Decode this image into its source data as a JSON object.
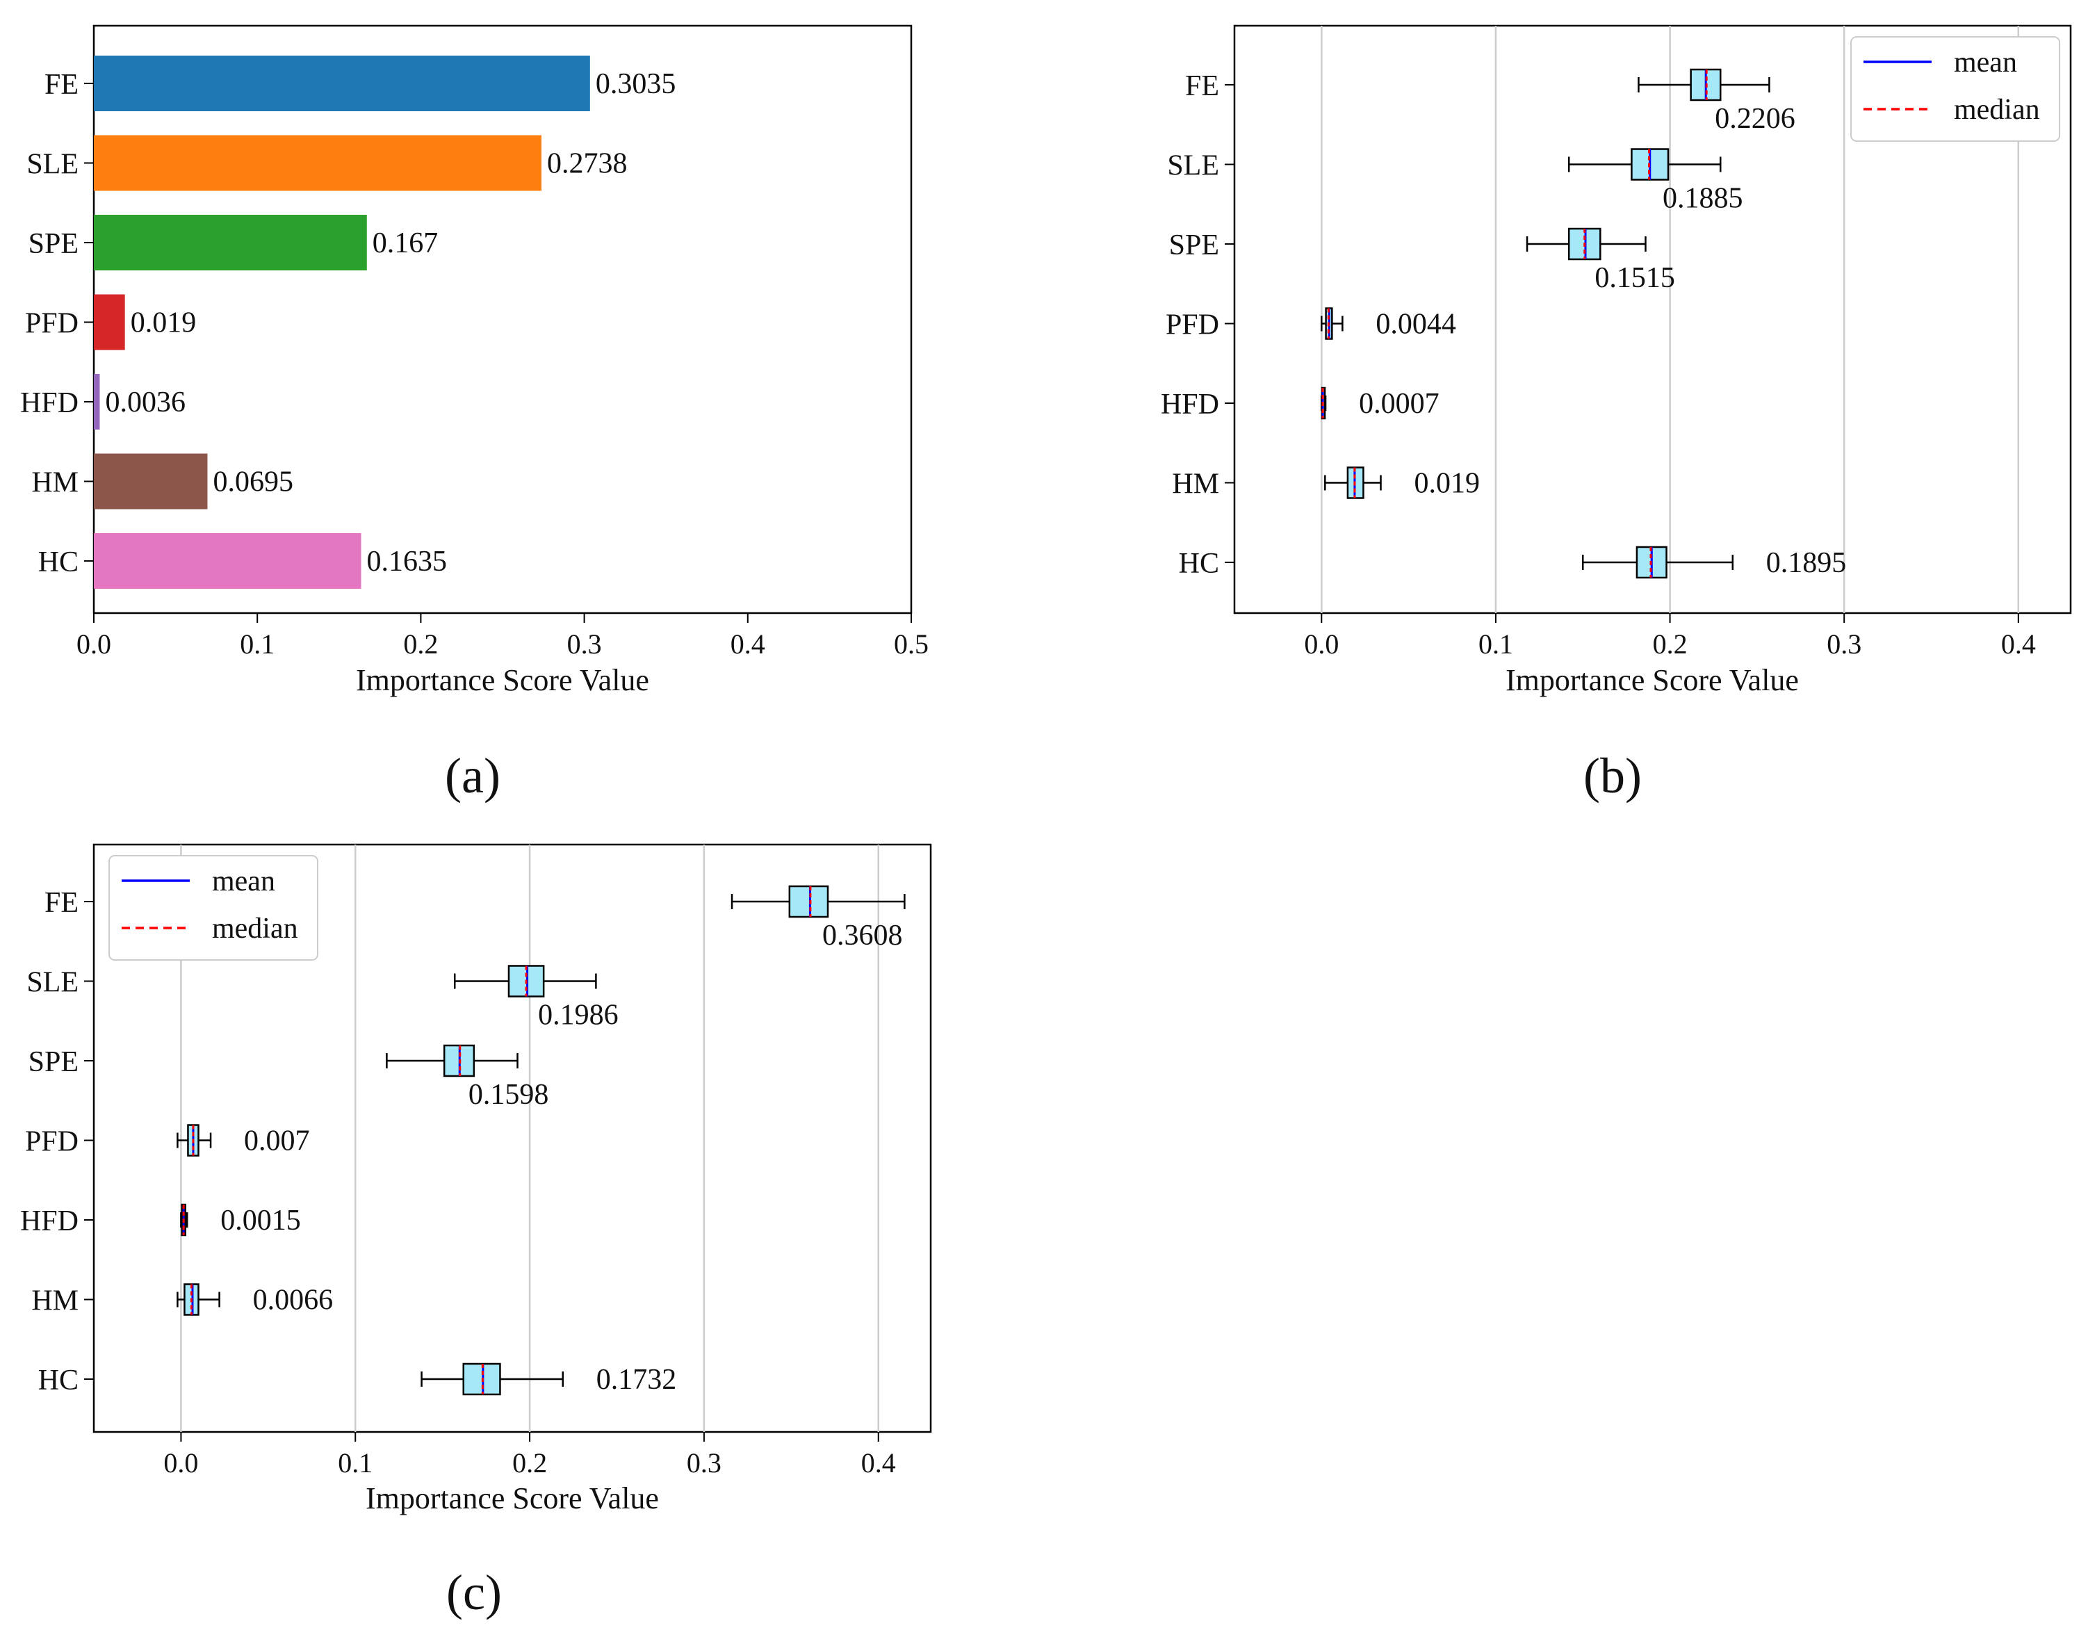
{
  "figure": {
    "panel_labels": [
      "(a)",
      "(b)",
      "(c)"
    ]
  },
  "chart_data": [
    {
      "id": "a",
      "type": "bar",
      "orientation": "horizontal",
      "categories": [
        "FE",
        "SLE",
        "SPE",
        "PFD",
        "HFD",
        "HM",
        "HC"
      ],
      "values": [
        0.3035,
        0.2738,
        0.167,
        0.019,
        0.0036,
        0.0695,
        0.1635
      ],
      "value_labels": [
        "0.3035",
        "0.2738",
        "0.167",
        "0.019",
        "0.0036",
        "0.0695",
        "0.1635"
      ],
      "colors": [
        "#1f77b4",
        "#ff7f0e",
        "#2ca02c",
        "#d62728",
        "#9467bd",
        "#8c564b",
        "#e377c2"
      ],
      "xlim": [
        0,
        0.5
      ],
      "xticks": [
        0,
        0.1,
        0.2,
        0.3,
        0.4,
        0.5
      ],
      "xtick_labels": [
        "0.0",
        "0.1",
        "0.2",
        "0.3",
        "0.4",
        "0.5"
      ],
      "title": "",
      "xlabel": "Importance Score Value",
      "ylabel": "",
      "grid": false,
      "legend": null
    },
    {
      "id": "b",
      "type": "boxplot",
      "orientation": "horizontal",
      "categories": [
        "FE",
        "SLE",
        "SPE",
        "PFD",
        "HFD",
        "HM",
        "HC"
      ],
      "boxes": [
        {
          "whisker_low": 0.182,
          "q1": 0.212,
          "median": 0.221,
          "q3": 0.229,
          "whisker_high": 0.257,
          "mean": 0.2206,
          "label": "0.2206"
        },
        {
          "whisker_low": 0.142,
          "q1": 0.178,
          "median": 0.188,
          "q3": 0.199,
          "whisker_high": 0.229,
          "mean": 0.1885,
          "label": "0.1885"
        },
        {
          "whisker_low": 0.118,
          "q1": 0.142,
          "median": 0.151,
          "q3": 0.16,
          "whisker_high": 0.186,
          "mean": 0.1515,
          "label": "0.1515"
        },
        {
          "whisker_low": 0.0,
          "q1": 0.0025,
          "median": 0.004,
          "q3": 0.006,
          "whisker_high": 0.012,
          "mean": 0.0044,
          "label": "0.0044"
        },
        {
          "whisker_low": 0.0,
          "q1": 0.0003,
          "median": 0.0007,
          "q3": 0.0011,
          "whisker_high": 0.0023,
          "mean": 0.0007,
          "label": "0.0007"
        },
        {
          "whisker_low": 0.002,
          "q1": 0.015,
          "median": 0.019,
          "q3": 0.024,
          "whisker_high": 0.034,
          "mean": 0.019,
          "label": "0.019"
        },
        {
          "whisker_low": 0.15,
          "q1": 0.181,
          "median": 0.189,
          "q3": 0.198,
          "whisker_high": 0.236,
          "mean": 0.1895,
          "label": "0.1895"
        }
      ],
      "label_placement": [
        "below",
        "below",
        "below",
        "right",
        "right",
        "right",
        "right"
      ],
      "box_fill": "#a6e8f7",
      "mean_color": "#0000ff",
      "median_color": "#ff0000",
      "xlim": [
        -0.05,
        0.43
      ],
      "xticks": [
        0,
        0.1,
        0.2,
        0.3,
        0.4
      ],
      "xtick_labels": [
        "0.0",
        "0.1",
        "0.2",
        "0.3",
        "0.4"
      ],
      "xlabel": "Importance Score Value",
      "ylabel": "",
      "title": "",
      "grid": "x",
      "legend": {
        "position": "top-right",
        "entries": [
          "mean",
          "median"
        ]
      }
    },
    {
      "id": "c",
      "type": "boxplot",
      "orientation": "horizontal",
      "categories": [
        "FE",
        "SLE",
        "SPE",
        "PFD",
        "HFD",
        "HM",
        "HC"
      ],
      "boxes": [
        {
          "whisker_low": 0.316,
          "q1": 0.349,
          "median": 0.361,
          "q3": 0.371,
          "whisker_high": 0.415,
          "mean": 0.3608,
          "label": "0.3608"
        },
        {
          "whisker_low": 0.157,
          "q1": 0.188,
          "median": 0.198,
          "q3": 0.208,
          "whisker_high": 0.238,
          "mean": 0.1986,
          "label": "0.1986"
        },
        {
          "whisker_low": 0.118,
          "q1": 0.151,
          "median": 0.16,
          "q3": 0.168,
          "whisker_high": 0.193,
          "mean": 0.1598,
          "label": "0.1598"
        },
        {
          "whisker_low": -0.002,
          "q1": 0.004,
          "median": 0.007,
          "q3": 0.01,
          "whisker_high": 0.017,
          "mean": 0.007,
          "label": "0.007"
        },
        {
          "whisker_low": 0.0,
          "q1": 0.0005,
          "median": 0.0015,
          "q3": 0.0025,
          "whisker_high": 0.0035,
          "mean": 0.0015,
          "label": "0.0015"
        },
        {
          "whisker_low": -0.002,
          "q1": 0.002,
          "median": 0.006,
          "q3": 0.01,
          "whisker_high": 0.022,
          "mean": 0.0066,
          "label": "0.0066"
        },
        {
          "whisker_low": 0.138,
          "q1": 0.162,
          "median": 0.173,
          "q3": 0.183,
          "whisker_high": 0.219,
          "mean": 0.1732,
          "label": "0.1732"
        }
      ],
      "label_placement": [
        "below",
        "below",
        "below",
        "right",
        "right",
        "right",
        "right"
      ],
      "box_fill": "#a6e8f7",
      "mean_color": "#0000ff",
      "median_color": "#ff0000",
      "xlim": [
        -0.05,
        0.43
      ],
      "xticks": [
        0,
        0.1,
        0.2,
        0.3,
        0.4
      ],
      "xtick_labels": [
        "0.0",
        "0.1",
        "0.2",
        "0.3",
        "0.4"
      ],
      "xlabel": "Importance Score Value",
      "ylabel": "",
      "title": "",
      "grid": "x",
      "legend": {
        "position": "top-left",
        "entries": [
          "mean",
          "median"
        ]
      }
    }
  ]
}
